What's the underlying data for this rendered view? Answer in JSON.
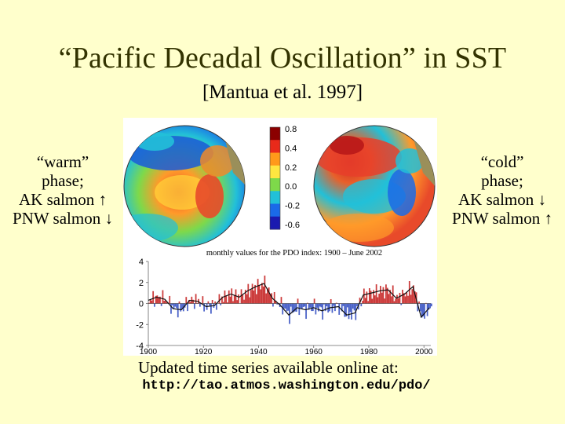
{
  "slide": {
    "title": "“Pacific Decadal Oscillation” in SST",
    "subtitle": "[Mantua et al. 1997]"
  },
  "left_panel": {
    "phase": "“warm”",
    "phase_word": "phase;",
    "line1": "AK salmon ↑",
    "line2": "PNW salmon ↓"
  },
  "right_panel": {
    "phase": "“cold”",
    "phase_word": "phase;",
    "line1": "AK salmon ↓",
    "line2": "PNW salmon ↑"
  },
  "figure": {
    "colorbar_labels": [
      "0.8",
      "0.4",
      "0.2",
      "0.0",
      "-0.2",
      "-0.6"
    ],
    "colorbar_colors": [
      "#8b0000",
      "#e82a1a",
      "#ff9a1a",
      "#ffe640",
      "#7ed94a",
      "#22c0d8",
      "#1a6ae8",
      "#1a1ab0"
    ],
    "chart_data": {
      "type": "area",
      "title": "monthly values for the PDO index: 1900 – June 2002",
      "xlabel": "",
      "ylabel": "",
      "x_ticks": [
        1900,
        1920,
        1940,
        1960,
        1980,
        2000
      ],
      "y_ticks": [
        4,
        2,
        0,
        -2,
        -4
      ],
      "xlim": [
        1900,
        2002.5
      ],
      "ylim": [
        -4,
        4
      ],
      "positive_color": "#cc3b3b",
      "negative_color": "#4a62c8",
      "years": [
        1900,
        1903,
        1906,
        1909,
        1912,
        1915,
        1918,
        1921,
        1924,
        1927,
        1930,
        1933,
        1936,
        1939,
        1942,
        1945,
        1948,
        1951,
        1954,
        1957,
        1960,
        1963,
        1966,
        1969,
        1972,
        1975,
        1978,
        1981,
        1984,
        1987,
        1990,
        1993,
        1996,
        1999,
        2002
      ],
      "values": [
        0.3,
        0.6,
        0.4,
        -0.5,
        -0.6,
        0.3,
        0.2,
        -0.3,
        -0.2,
        0.6,
        0.9,
        0.6,
        1.2,
        1.6,
        1.9,
        0.5,
        -0.2,
        -1.1,
        -0.4,
        -0.6,
        -0.4,
        -0.7,
        -0.4,
        -0.3,
        -1.1,
        -0.9,
        0.8,
        1.0,
        1.2,
        1.3,
        0.5,
        0.9,
        1.6,
        -1.3,
        -0.4
      ]
    }
  },
  "caption": {
    "text": "Updated time series available online at:",
    "url": "http://tao.atmos.washington.edu/pdo/"
  }
}
